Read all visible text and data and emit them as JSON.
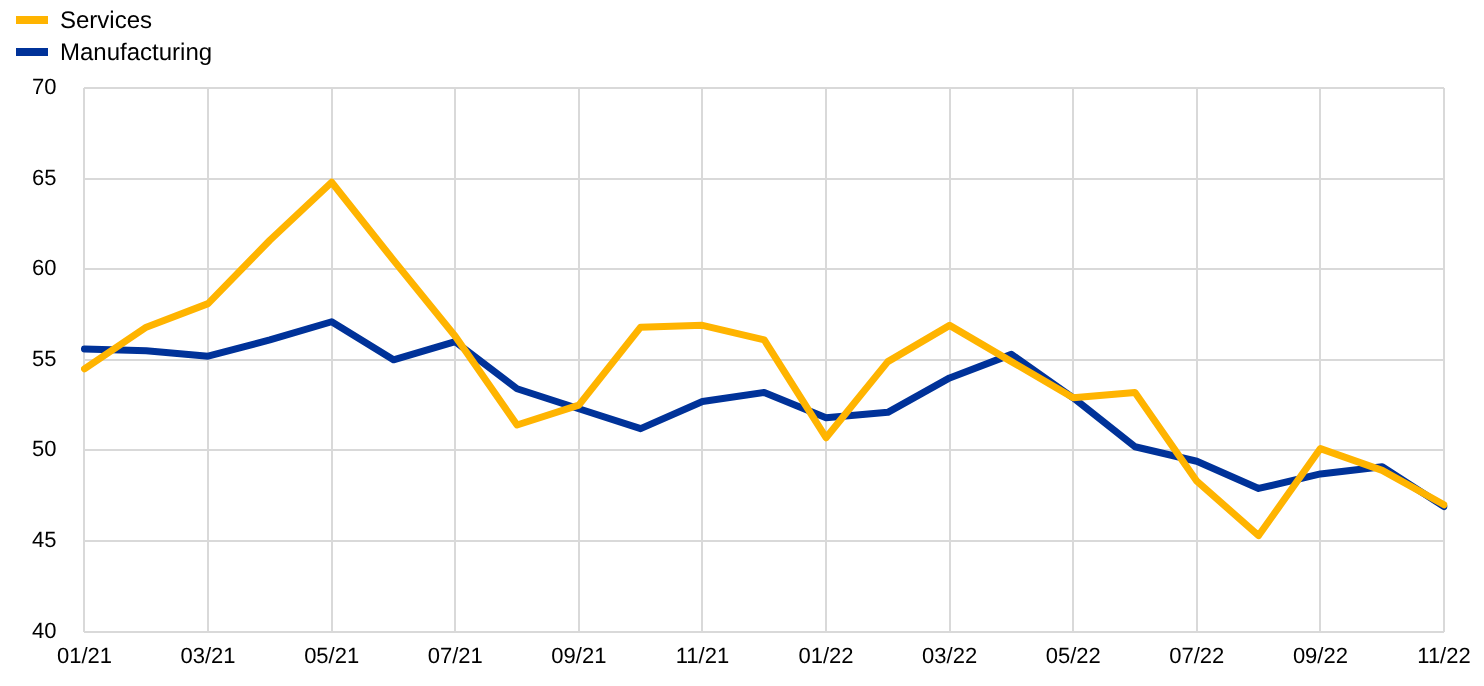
{
  "chart_data": {
    "type": "line",
    "categories": [
      "01/21",
      null,
      "03/21",
      null,
      "05/21",
      null,
      "07/21",
      null,
      "09/21",
      null,
      "11/21",
      null,
      "01/22",
      null,
      "03/22",
      null,
      "05/22",
      null,
      "07/22",
      null,
      "09/22",
      null,
      "11/22"
    ],
    "series": [
      {
        "name": "Services",
        "color": "#ffb400",
        "values": [
          54.5,
          56.8,
          58.1,
          61.6,
          64.8,
          60.5,
          56.3,
          51.4,
          52.5,
          56.8,
          56.9,
          56.1,
          50.7,
          54.9,
          56.9,
          54.9,
          52.9,
          53.2,
          48.3,
          45.3,
          50.1,
          48.9,
          47.0
        ]
      },
      {
        "name": "Manufacturing",
        "color": "#003299",
        "values": [
          55.6,
          55.5,
          55.2,
          56.1,
          57.1,
          55.0,
          56.0,
          53.4,
          52.3,
          51.2,
          52.7,
          53.2,
          51.8,
          52.1,
          54.0,
          55.3,
          52.9,
          50.2,
          49.4,
          47.9,
          48.7,
          49.1,
          46.9
        ]
      }
    ],
    "ylim": [
      40,
      70
    ],
    "yticks": [
      40,
      45,
      50,
      55,
      60,
      65,
      70
    ],
    "grid": true,
    "legend": "top left",
    "marker": "none",
    "line_style": "solid"
  }
}
